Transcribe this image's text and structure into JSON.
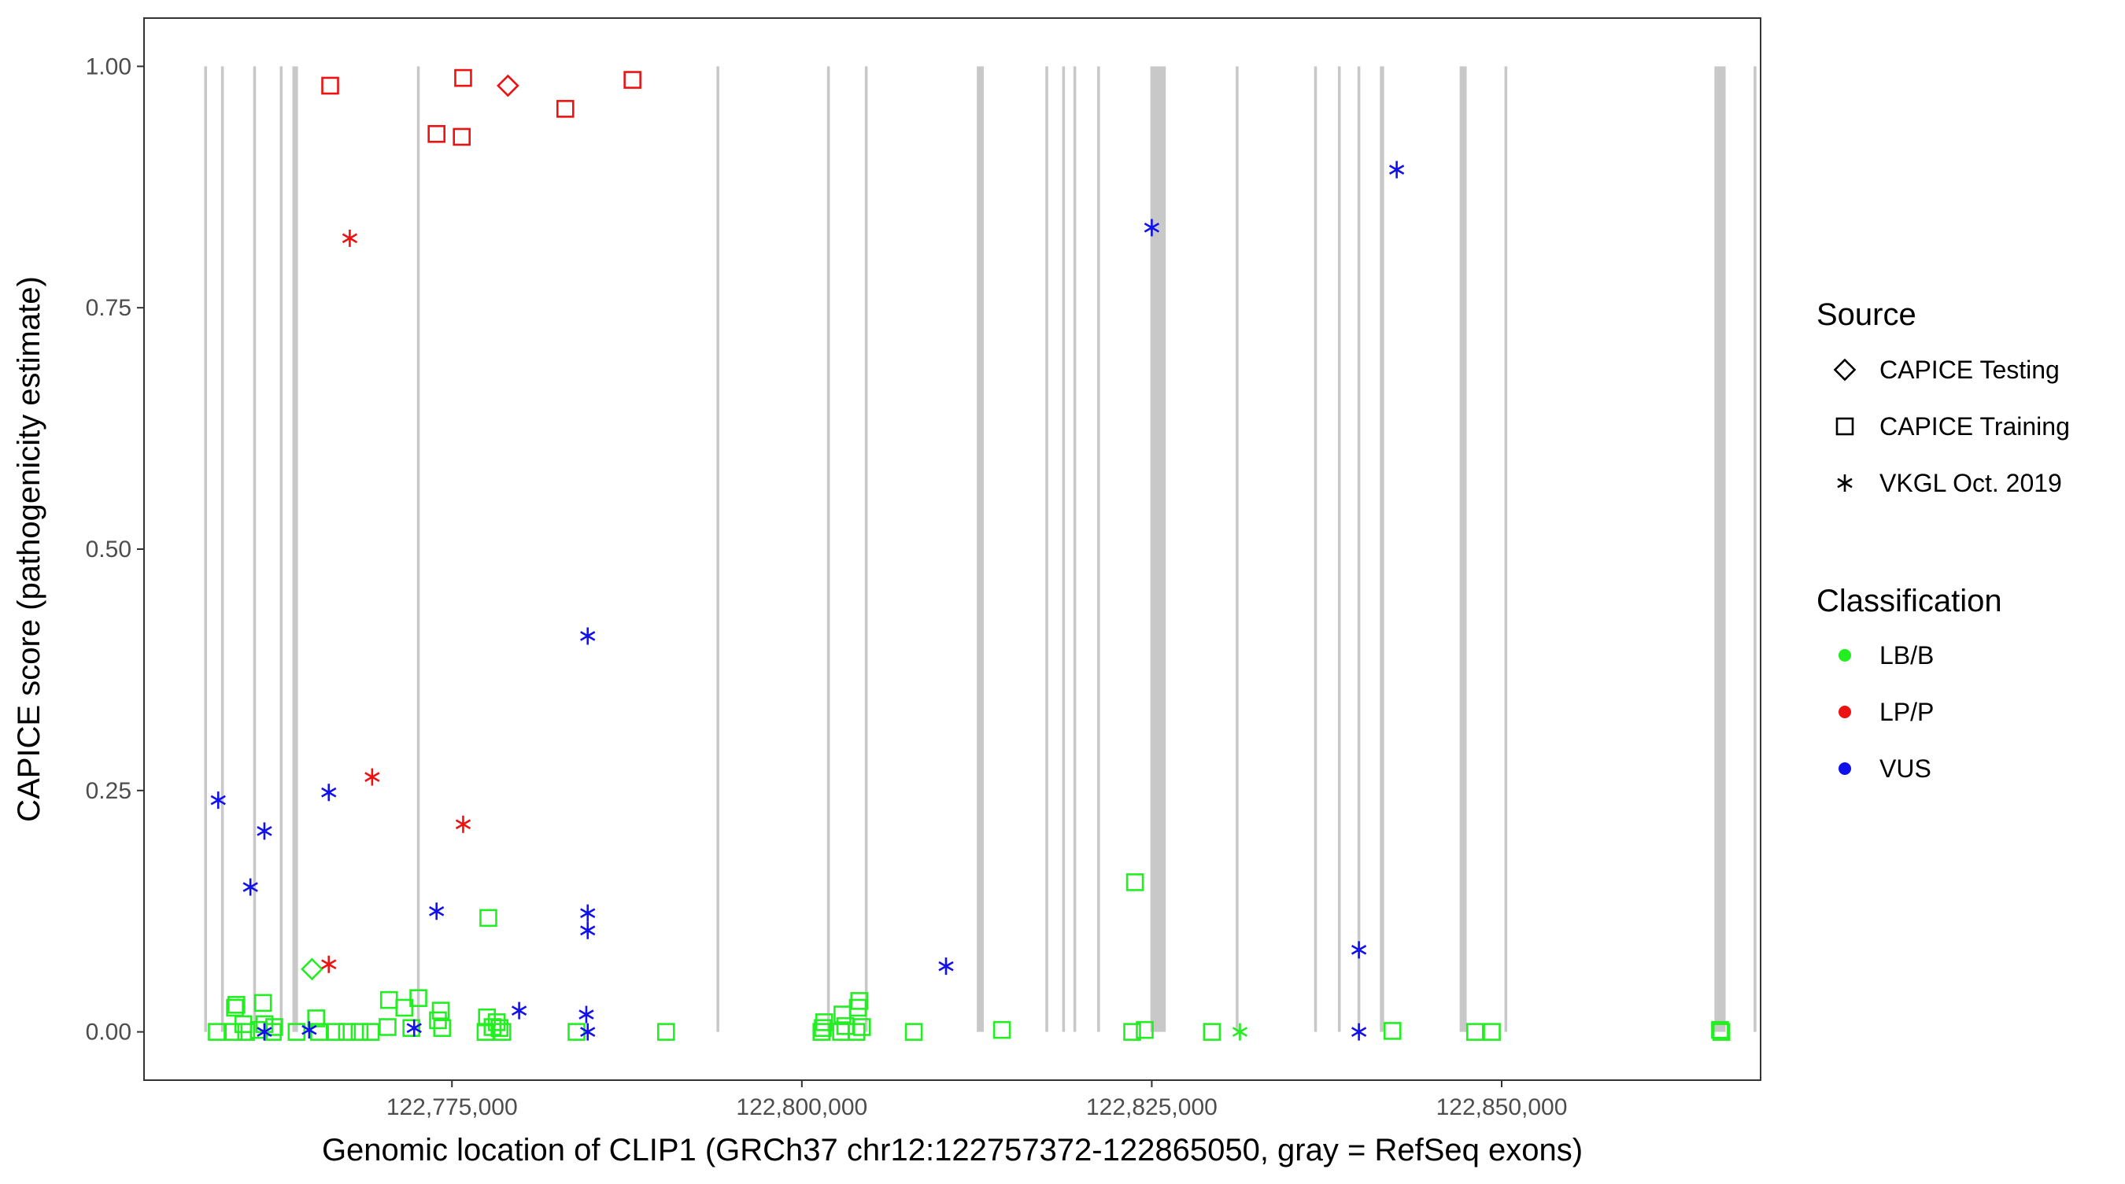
{
  "chart_data": {
    "type": "scatter",
    "xlabel": "Genomic location of CLIP1 (GRCh37 chr12:122757372-122865050, gray = RefSeq exons)",
    "ylabel": "CAPICE score (pathogenicity estimate)",
    "xlim": [
      122753000,
      122868500
    ],
    "ylim": [
      -0.05,
      1.05
    ],
    "x_ticks": [
      122775000,
      122800000,
      122825000,
      122850000
    ],
    "x_tick_labels": [
      "122,775,000",
      "122,800,000",
      "122,825,000",
      "122,850,000"
    ],
    "y_ticks": [
      0,
      0.25,
      0.5,
      0.75,
      1.0
    ],
    "y_tick_labels": [
      "0.00",
      "0.25",
      "0.50",
      "0.75",
      "1.00"
    ],
    "grid": false,
    "exons_color": "#c8c8c8",
    "exons": [
      [
        122757300,
        122757500
      ],
      [
        122758500,
        122758700
      ],
      [
        122760800,
        122761000
      ],
      [
        122762700,
        122762900
      ],
      [
        122763600,
        122764000
      ],
      [
        122772500,
        122772700
      ],
      [
        122793900,
        122794100
      ],
      [
        122801800,
        122802000
      ],
      [
        122804500,
        122804700
      ],
      [
        122812500,
        122813000
      ],
      [
        122817400,
        122817600
      ],
      [
        122818600,
        122818800
      ],
      [
        122819400,
        122819600
      ],
      [
        122821100,
        122821300
      ],
      [
        122824900,
        122826000
      ],
      [
        122831000,
        122831200
      ],
      [
        122836600,
        122836800
      ],
      [
        122838300,
        122838500
      ],
      [
        122839700,
        122839900
      ],
      [
        122841300,
        122841600
      ],
      [
        122847000,
        122847500
      ],
      [
        122850200,
        122850400
      ],
      [
        122865200,
        122866000
      ],
      [
        122868000,
        122868200
      ]
    ],
    "legend": {
      "position": "right",
      "source_title": "Source",
      "source_entries": [
        {
          "label": "CAPICE Testing",
          "shape": "diamond"
        },
        {
          "label": "CAPICE Training",
          "shape": "square"
        },
        {
          "label": "VKGL Oct. 2019",
          "shape": "asterisk"
        }
      ],
      "class_title": "Classification",
      "class_entries": [
        {
          "label": "LB/B",
          "color": "#22ee22"
        },
        {
          "label": "LP/P",
          "color": "#ee1111"
        },
        {
          "label": "VUS",
          "color": "#1111ee"
        }
      ]
    },
    "colors": {
      "LB/B": "#22ee22",
      "LP/P": "#ee1111",
      "VUS": "#1111ee"
    },
    "series": [
      {
        "source": "CAPICE Testing",
        "classification": "LP/P",
        "shape": "diamond",
        "points": [
          [
            122779000,
            0.98
          ]
        ]
      },
      {
        "source": "CAPICE Testing",
        "classification": "LB/B",
        "shape": "diamond",
        "points": [
          [
            122765000,
            0.065
          ]
        ]
      },
      {
        "source": "CAPICE Training",
        "classification": "LP/P",
        "shape": "square",
        "points": [
          [
            122766300,
            0.98
          ],
          [
            122773900,
            0.93
          ],
          [
            122775700,
            0.927
          ],
          [
            122775800,
            0.988
          ],
          [
            122783100,
            0.956
          ],
          [
            122787900,
            0.986
          ]
        ]
      },
      {
        "source": "CAPICE Training",
        "classification": "LB/B",
        "shape": "square",
        "points": [
          [
            122758200,
            0.0
          ],
          [
            122759400,
            0.0
          ],
          [
            122759500,
            0.025
          ],
          [
            122759600,
            0.028
          ],
          [
            122760100,
            0.008
          ],
          [
            122760300,
            0.0
          ],
          [
            122761200,
            0.002
          ],
          [
            122761500,
            0.03
          ],
          [
            122761600,
            0.008
          ],
          [
            122762200,
            0.0
          ],
          [
            122762300,
            0.005
          ],
          [
            122763900,
            0.0
          ],
          [
            122765300,
            0.014
          ],
          [
            122765500,
            0.0
          ],
          [
            122766700,
            0.0
          ],
          [
            122767500,
            0.0
          ],
          [
            122768400,
            0.0
          ],
          [
            122769200,
            0.0
          ],
          [
            122770400,
            0.005
          ],
          [
            122770500,
            0.033
          ],
          [
            122771600,
            0.025
          ],
          [
            122772100,
            0.004
          ],
          [
            122772600,
            0.035
          ],
          [
            122774000,
            0.012
          ],
          [
            122774200,
            0.022
          ],
          [
            122774300,
            0.004
          ],
          [
            122777400,
            0.0
          ],
          [
            122777500,
            0.015
          ],
          [
            122777600,
            0.118
          ],
          [
            122777900,
            0.005
          ],
          [
            122778200,
            0.01
          ],
          [
            122778400,
            0.004
          ],
          [
            122778600,
            0.0
          ],
          [
            122783900,
            0.0
          ],
          [
            122790300,
            0.0
          ],
          [
            122801400,
            0.0
          ],
          [
            122801500,
            0.004
          ],
          [
            122801600,
            0.01
          ],
          [
            122802800,
            0.0
          ],
          [
            122802900,
            0.018
          ],
          [
            122803100,
            0.006
          ],
          [
            122803900,
            0.0
          ],
          [
            122804000,
            0.025
          ],
          [
            122804100,
            0.032
          ],
          [
            122804300,
            0.005
          ],
          [
            122808000,
            0.0
          ],
          [
            122814300,
            0.002
          ],
          [
            122823600,
            0.0
          ],
          [
            122823800,
            0.155
          ],
          [
            122824500,
            0.002
          ],
          [
            122829300,
            0.0
          ],
          [
            122842200,
            0.001
          ],
          [
            122848100,
            0.0
          ],
          [
            122849300,
            0.0
          ],
          [
            122865600,
            0.002
          ],
          [
            122865700,
            0.0
          ]
        ]
      },
      {
        "source": "VKGL Oct. 2019",
        "classification": "LP/P",
        "shape": "asterisk",
        "points": [
          [
            122767700,
            0.822
          ],
          [
            122769300,
            0.264
          ],
          [
            122775800,
            0.215
          ],
          [
            122766200,
            0.07
          ]
        ]
      },
      {
        "source": "VKGL Oct. 2019",
        "classification": "VUS",
        "shape": "asterisk",
        "points": [
          [
            122758300,
            0.24
          ],
          [
            122760600,
            0.15
          ],
          [
            122761600,
            0.208
          ],
          [
            122766200,
            0.248
          ],
          [
            122773900,
            0.125
          ],
          [
            122784700,
            0.41
          ],
          [
            122784700,
            0.123
          ],
          [
            122784700,
            0.105
          ],
          [
            122784600,
            0.018
          ],
          [
            122779800,
            0.022
          ],
          [
            122772300,
            0.004
          ],
          [
            122761600,
            0.0
          ],
          [
            122764800,
            0.002
          ],
          [
            122784700,
            0.0
          ],
          [
            122810300,
            0.068
          ],
          [
            122825000,
            0.833
          ],
          [
            122839800,
            0.085
          ],
          [
            122839800,
            0.0
          ],
          [
            122842500,
            0.893
          ]
        ]
      },
      {
        "source": "VKGL Oct. 2019",
        "classification": "LB/B",
        "shape": "asterisk",
        "points": [
          [
            122831300,
            0.0
          ]
        ]
      }
    ]
  }
}
